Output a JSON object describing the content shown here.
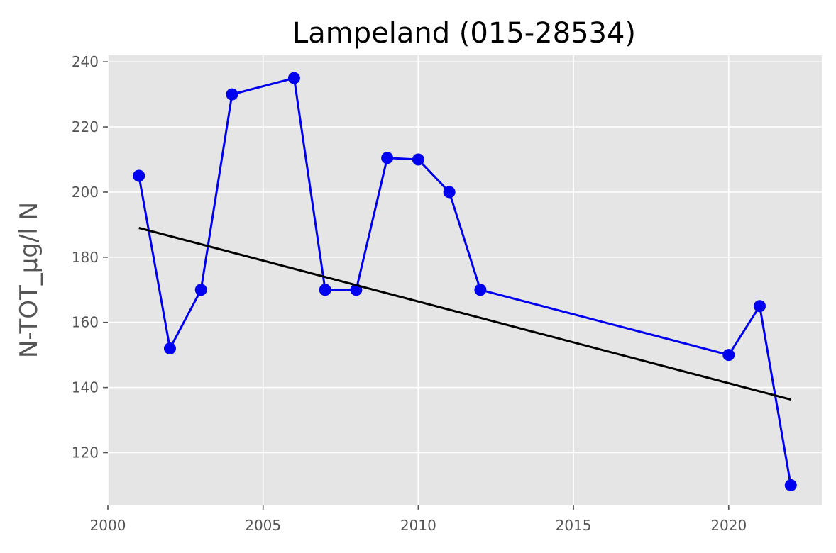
{
  "chart_data": {
    "type": "line",
    "title": "Lampeland (015-28534)",
    "xlabel": "",
    "ylabel": "N-TOT_µg/l N",
    "xlim": [
      2000,
      2023
    ],
    "ylim": [
      104,
      242
    ],
    "xticks": [
      2000,
      2005,
      2010,
      2015,
      2020
    ],
    "yticks": [
      120,
      140,
      160,
      180,
      200,
      220,
      240
    ],
    "grid": true,
    "legend": "none",
    "series": [
      {
        "style": "line-markers",
        "color": "#0000ee",
        "x": [
          2001,
          2002,
          2003,
          2004,
          2006,
          2007,
          2008,
          2009,
          2010,
          2011,
          2012,
          2020,
          2021,
          2022
        ],
        "y": [
          205,
          152,
          170,
          230,
          235,
          170,
          170,
          210.5,
          210,
          200,
          170,
          150,
          165,
          110
        ]
      },
      {
        "style": "trend-line",
        "color": "#000000",
        "x": [
          2001,
          2022
        ],
        "y": [
          189,
          136.3
        ]
      }
    ],
    "colors": {
      "background": "#e5e5e5",
      "grid": "#ffffff",
      "axis_text": "#555555"
    }
  }
}
